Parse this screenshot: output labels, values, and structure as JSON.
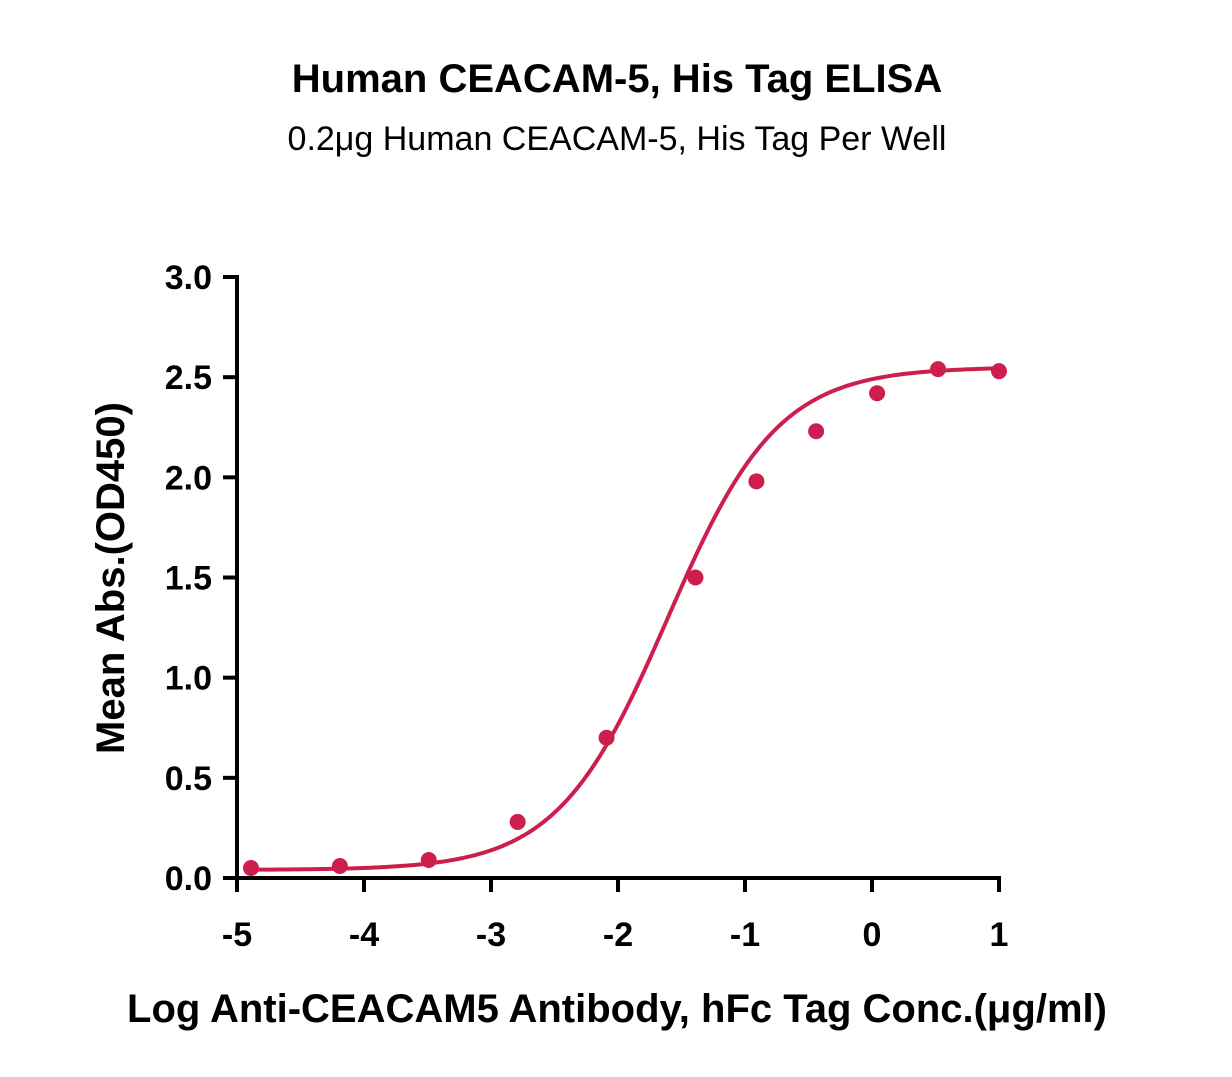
{
  "chart_data": {
    "type": "scatter",
    "title": "Human CEACAM-5, His Tag ELISA",
    "subtitle": "0.2μg Human CEACAM-5, His Tag Per Well",
    "xlabel": "Log Anti-CEACAM5 Antibody, hFc Tag Conc.(μg/ml)",
    "ylabel": "Mean Abs.(OD450)",
    "xlim": [
      -5,
      1
    ],
    "ylim": [
      0,
      3.0
    ],
    "x_ticks": [
      "-5",
      "-4",
      "-3",
      "-2",
      "-1",
      "0",
      "1"
    ],
    "y_ticks": [
      "0.0",
      "0.5",
      "1.0",
      "1.5",
      "2.0",
      "2.5",
      "3.0"
    ],
    "grid": false,
    "legend": "none",
    "series_color": "#cc1f4e",
    "series": [
      {
        "x": [
          -4.89,
          -4.19,
          -3.49,
          -2.79,
          -2.09,
          -1.39,
          -0.91,
          -0.44,
          0.04,
          0.52,
          1.0
        ],
        "y": [
          0.05,
          0.06,
          0.09,
          0.28,
          0.7,
          1.5,
          1.98,
          2.23,
          2.42,
          2.54,
          2.53
        ]
      }
    ],
    "fit": {
      "model": "4PL",
      "bottom": 0.04,
      "top": 2.55,
      "log_ec50": -1.61,
      "hill_slope": 1.0
    }
  }
}
